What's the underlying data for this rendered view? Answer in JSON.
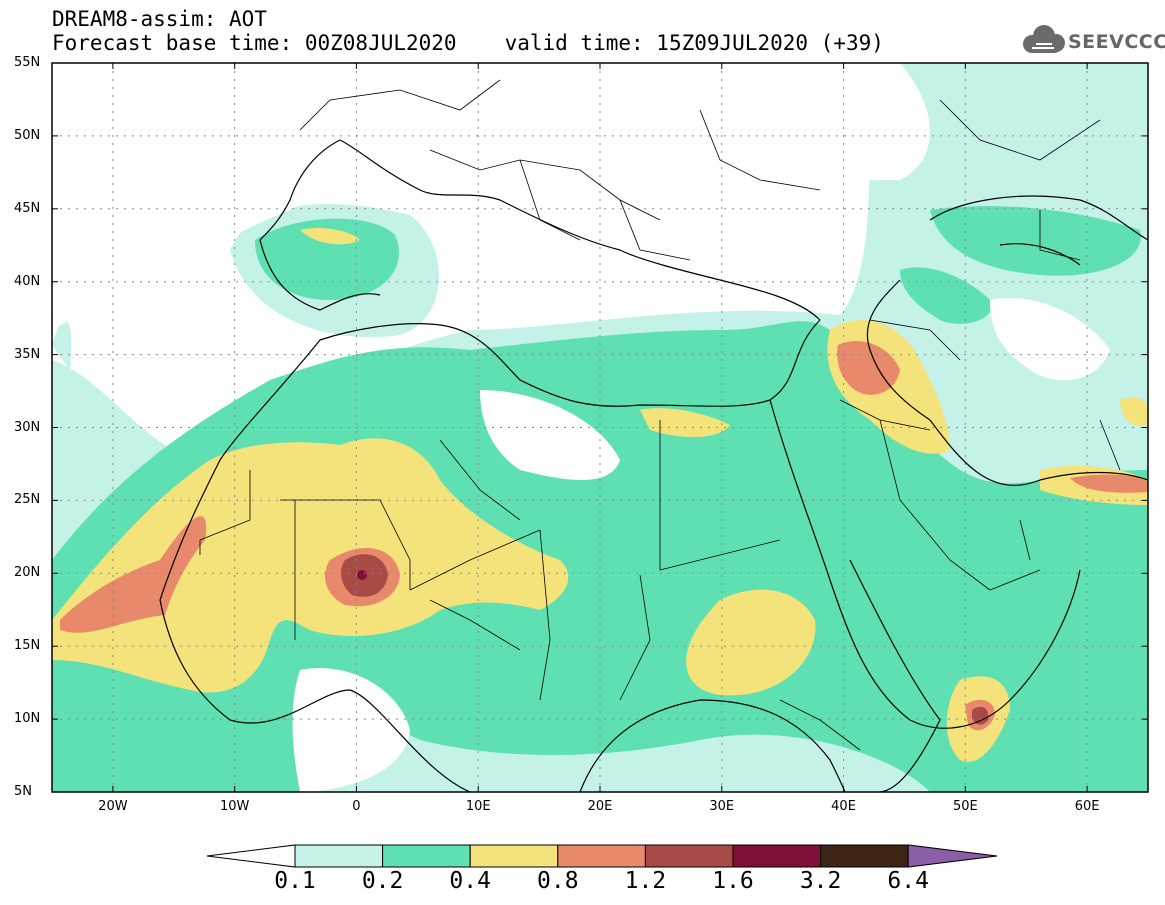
{
  "header": {
    "line1": "DREAM8-assim: AOT",
    "base_time_label": "Forecast base time: 00Z08JUL2020",
    "valid_time_label": "valid time: 15Z09JUL2020 (+39)",
    "logo_text": "SEEVCCC",
    "logo_icon": "cloud-icon"
  },
  "map": {
    "projection": "lat-lon",
    "lon_range": [
      -25,
      65
    ],
    "lat_range": [
      5,
      55
    ],
    "gridlines": "dotted",
    "lat_labels": [
      "5N",
      "10N",
      "15N",
      "20N",
      "25N",
      "30N",
      "35N",
      "40N",
      "45N",
      "50N",
      "55N"
    ],
    "lon_labels": [
      "20W",
      "10W",
      "0",
      "10E",
      "20E",
      "30E",
      "40E",
      "50E",
      "60E"
    ]
  },
  "colorbar": {
    "labels": [
      "0.1",
      "0.2",
      "0.4",
      "0.8",
      "1.2",
      "1.6",
      "3.2",
      "6.4"
    ],
    "colors": [
      "#ffffff",
      "#c4f2e8",
      "#5ee0b2",
      "#f4e37a",
      "#e8896b",
      "#a84a45",
      "#80103a",
      "#3e2414",
      "#8b5ea8"
    ]
  }
}
